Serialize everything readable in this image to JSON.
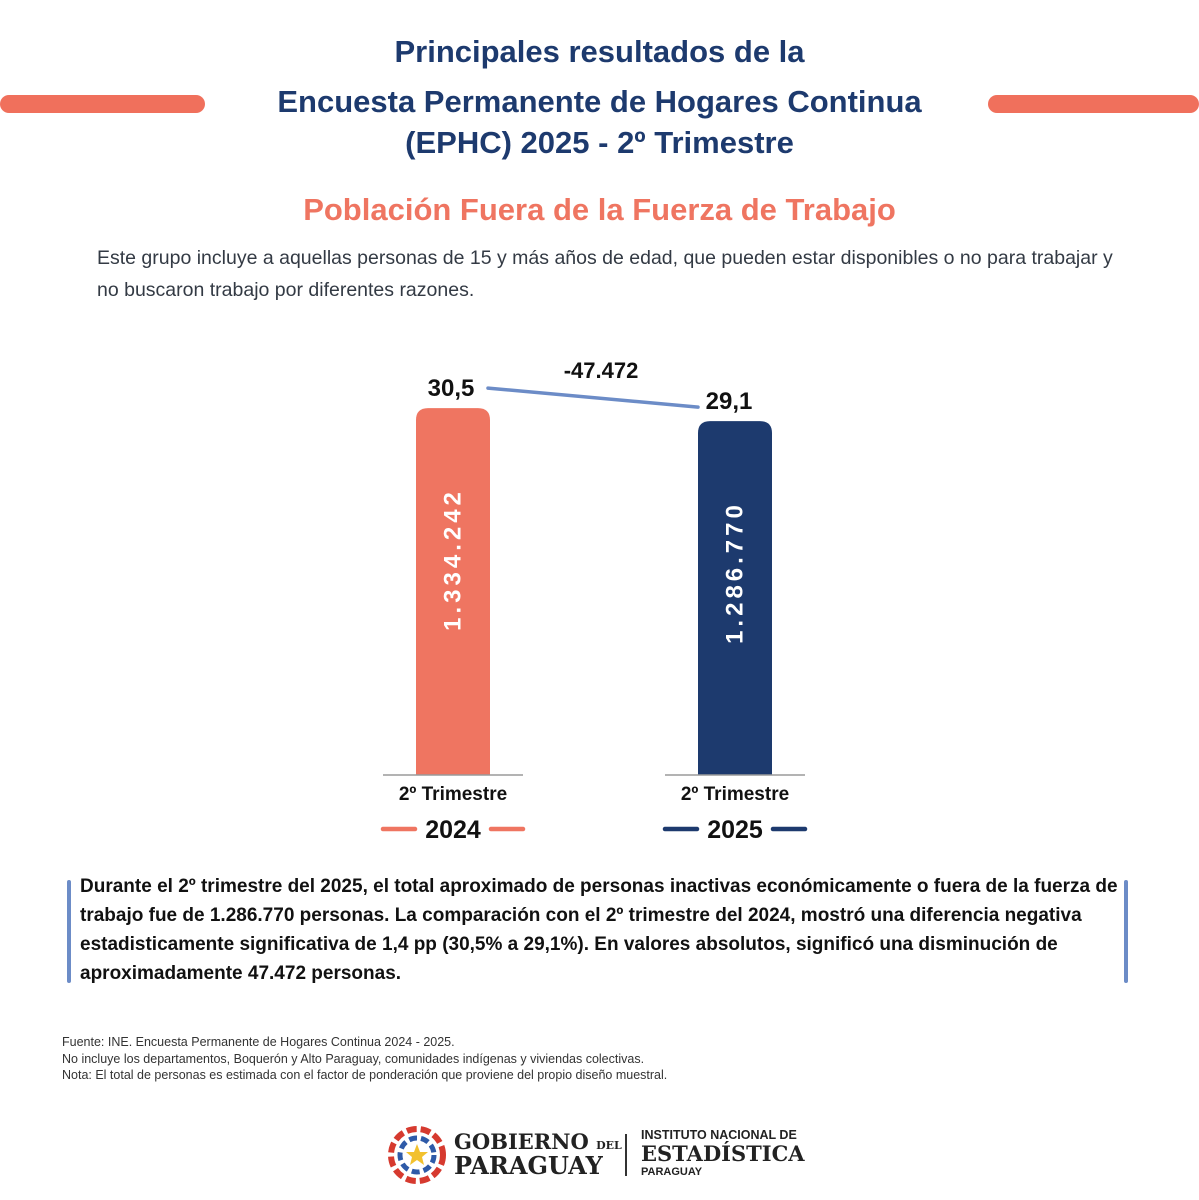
{
  "header": {
    "line1": "Principales resultados de la",
    "line2": "Encuesta Permanente de Hogares Continua",
    "line3": "(EPHC) 2025 - 2º Trimestre"
  },
  "section_title": "Población Fuera de la Fuerza de Trabajo",
  "description": "Este grupo incluye a aquellas personas de 15 y más años de edad, que pueden estar disponibles o no para trabajar y no buscaron trabajo por diferentes razones.",
  "colors": {
    "coral": "#ef7561",
    "navy": "#1d3a6e",
    "connector": "#6c8cc7"
  },
  "chart_data": {
    "type": "bar",
    "categories": [
      "2º Trimestre 2024",
      "2º Trimestre 2025"
    ],
    "quarter_label": "2º Trimestre",
    "years": [
      "2024",
      "2025"
    ],
    "values": [
      1334242,
      1286770
    ],
    "value_labels": [
      "1.334.242",
      "1.286.770"
    ],
    "rates": [
      30.5,
      29.1
    ],
    "rate_labels": [
      "30,5",
      "29,1"
    ],
    "difference_label": "-47.472",
    "bar_colors": [
      "#ef7561",
      "#1d3a6e"
    ]
  },
  "summary": "Durante el 2º trimestre del 2025, el total aproximado de personas inactivas económicamente o fuera de la fuerza de trabajo fue de 1.286.770 personas. La comparación con el 2º trimestre del 2024, mostró una diferencia negativa estadisticamente significativa de 1,4 pp (30,5% a 29,1%). En valores absolutos, significó una disminución de aproximadamente 47.472 personas.",
  "notes": [
    "Fuente: INE. Encuesta Permanente de Hogares Continua 2024 - 2025.",
    "No incluye los departamentos, Boquerón y Alto Paraguay, comunidades indígenas y viviendas colectivas.",
    "Nota: El total de personas es estimada con el factor de ponderación que proviene del propio diseño muestral."
  ],
  "footer": {
    "gov_line1": "GOBIERNO",
    "gov_del": "DEL",
    "gov_line2": "PARAGUAY",
    "ine_line1": "INSTITUTO NACIONAL DE",
    "ine_line2": "ESTADÍSTICA",
    "ine_line3": "PARAGUAY"
  }
}
